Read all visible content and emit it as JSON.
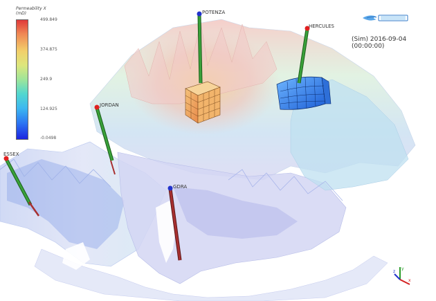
{
  "colorbar": {
    "title_line1": "Permeability X",
    "title_line2": "(mD)",
    "ticks": [
      "499.849",
      "374.875",
      "249.9",
      "124.925",
      "-0.0498"
    ]
  },
  "timestamp": "(Sim) 2016-09-04 (00:00:00)",
  "wells": [
    {
      "name": "POTENZA"
    },
    {
      "name": "HERCULES"
    },
    {
      "name": "JORDAN"
    },
    {
      "name": "ESSEX"
    },
    {
      "name": "GDRA"
    }
  ],
  "colors": {
    "pipe_green": "#3aa13a",
    "pipe_red": "#a83030",
    "well_head_red": "#e02020",
    "well_head_blue": "#2233cc",
    "block_orange": "#f2a05a",
    "block_blue": "#2a7ee8"
  },
  "icons": {
    "logo": "resinsight-logo",
    "axis_triad": "xyz-axes-icon"
  }
}
